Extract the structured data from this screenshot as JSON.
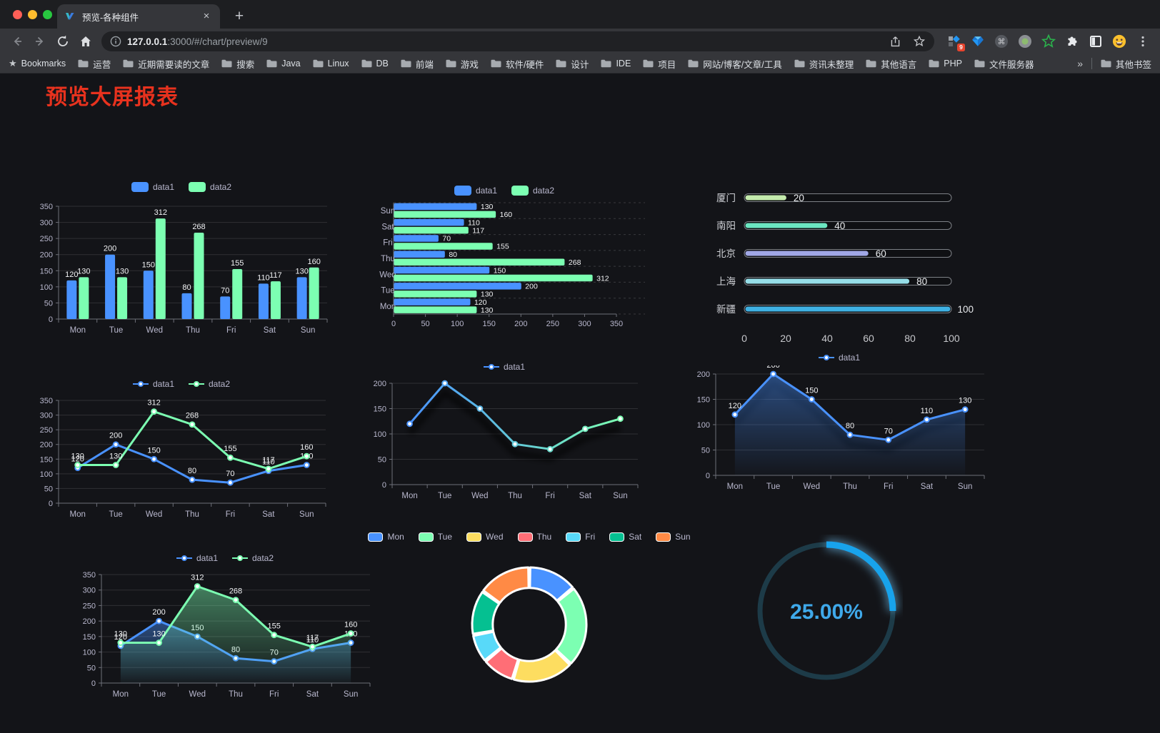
{
  "browser": {
    "tab_title": "预览-各种组件",
    "close_label": "×",
    "new_tab_label": "+",
    "url_host": "127.0.0.1",
    "url_rest": ":3000/#/chart/preview/9",
    "extension_badge": "9",
    "bookmarks_label": "Bookmarks",
    "bookmarks": [
      "运营",
      "近期需要读的文章",
      "搜索",
      "Java",
      "Linux",
      "DB",
      "前端",
      "游戏",
      "软件/硬件",
      "设计",
      "IDE",
      "项目",
      "网站/博客/文章/工具",
      "资讯未整理",
      "其他语言",
      "PHP",
      "文件服务器"
    ],
    "bookmarks_overflow": "»",
    "other_bookmarks": "其他书签"
  },
  "page": {
    "title": "预览大屏报表",
    "title_color": "#e8321e",
    "background": "#131418"
  },
  "chart_data": [
    {
      "id": "bar-vertical",
      "type": "bar",
      "categories": [
        "Mon",
        "Tue",
        "Wed",
        "Thu",
        "Fri",
        "Sat",
        "Sun"
      ],
      "series": [
        {
          "name": "data1",
          "color": "#4992ff",
          "values": [
            120,
            200,
            150,
            80,
            70,
            110,
            130
          ]
        },
        {
          "name": "data2",
          "color": "#7cffb2",
          "values": [
            130,
            130,
            312,
            268,
            155,
            117,
            160
          ]
        }
      ],
      "ylim": [
        0,
        350
      ],
      "yticks": [
        0,
        50,
        100,
        150,
        200,
        250,
        300,
        350
      ],
      "show_labels": true,
      "legend_position": "top",
      "grid": true
    },
    {
      "id": "bar-horizontal",
      "type": "bar-horizontal",
      "categories": [
        "Mon",
        "Tue",
        "Wed",
        "Thu",
        "Fri",
        "Sat",
        "Sun"
      ],
      "display_order": [
        "Sun",
        "Sat",
        "Fri",
        "Thu",
        "Wed",
        "Tue",
        "Mon"
      ],
      "series": [
        {
          "name": "data1",
          "color": "#4992ff",
          "values": [
            120,
            200,
            150,
            80,
            70,
            110,
            130
          ]
        },
        {
          "name": "data2",
          "color": "#7cffb2",
          "values": [
            130,
            130,
            312,
            268,
            155,
            117,
            160
          ]
        }
      ],
      "xlim": [
        0,
        350
      ],
      "xticks": [
        0,
        50,
        100,
        150,
        200,
        250,
        300,
        350
      ],
      "show_labels": true,
      "legend_position": "top",
      "grid": true
    },
    {
      "id": "progress",
      "type": "progress-bars",
      "categories": [
        "厦门",
        "南阳",
        "北京",
        "上海",
        "新疆"
      ],
      "values": [
        20,
        40,
        60,
        80,
        100
      ],
      "colors": [
        "#c4ebad",
        "#6be6c1",
        "#a0a7e6",
        "#96dee8",
        "#3fb1e3"
      ],
      "xlim": [
        0,
        100
      ],
      "xticks": [
        0,
        20,
        40,
        60,
        80,
        100
      ]
    },
    {
      "id": "line-basic",
      "type": "line",
      "categories": [
        "Mon",
        "Tue",
        "Wed",
        "Thu",
        "Fri",
        "Sat",
        "Sun"
      ],
      "series": [
        {
          "name": "data1",
          "color": "#4992ff",
          "values": [
            120,
            200,
            150,
            80,
            70,
            110,
            130
          ]
        },
        {
          "name": "data2",
          "color": "#7cffb2",
          "values": [
            130,
            130,
            312,
            268,
            155,
            117,
            160
          ]
        }
      ],
      "ylim": [
        0,
        350
      ],
      "yticks": [
        0,
        50,
        100,
        150,
        200,
        250,
        300,
        350
      ],
      "show_labels": true,
      "area": false,
      "legend_position": "top"
    },
    {
      "id": "line-gradient",
      "type": "line",
      "categories": [
        "Mon",
        "Tue",
        "Wed",
        "Thu",
        "Fri",
        "Sat",
        "Sun"
      ],
      "series": [
        {
          "name": "data1",
          "color": "#4992ff",
          "color_end": "#7cffb2",
          "values": [
            120,
            200,
            150,
            80,
            70,
            110,
            130
          ]
        }
      ],
      "ylim": [
        0,
        200
      ],
      "yticks": [
        0,
        50,
        100,
        150,
        200
      ],
      "show_labels": false,
      "area": false,
      "gradient_line": true,
      "shadow": true,
      "legend_position": "top"
    },
    {
      "id": "line-area-single",
      "type": "line",
      "categories": [
        "Mon",
        "Tue",
        "Wed",
        "Thu",
        "Fri",
        "Sat",
        "Sun"
      ],
      "series": [
        {
          "name": "data1",
          "color": "#4992ff",
          "values": [
            120,
            200,
            150,
            80,
            70,
            110,
            130
          ]
        }
      ],
      "ylim": [
        0,
        200
      ],
      "yticks": [
        0,
        50,
        100,
        150,
        200
      ],
      "show_labels": true,
      "area": true,
      "shadow": true,
      "legend_position": "top"
    },
    {
      "id": "line-area-double",
      "type": "line",
      "categories": [
        "Mon",
        "Tue",
        "Wed",
        "Thu",
        "Fri",
        "Sat",
        "Sun"
      ],
      "series": [
        {
          "name": "data1",
          "color": "#4992ff",
          "values": [
            120,
            200,
            150,
            80,
            70,
            110,
            130
          ]
        },
        {
          "name": "data2",
          "color": "#7cffb2",
          "values": [
            130,
            130,
            312,
            268,
            155,
            117,
            160
          ]
        }
      ],
      "ylim": [
        0,
        350
      ],
      "yticks": [
        0,
        50,
        100,
        150,
        200,
        250,
        300,
        350
      ],
      "show_labels": true,
      "area": true,
      "legend_position": "top"
    },
    {
      "id": "donut",
      "type": "pie",
      "categories": [
        "Mon",
        "Tue",
        "Wed",
        "Thu",
        "Fri",
        "Sat",
        "Sun"
      ],
      "values": [
        120,
        200,
        150,
        80,
        70,
        110,
        130
      ],
      "colors": [
        "#4992ff",
        "#7cffb2",
        "#fddd60",
        "#ff6e76",
        "#58d9f9",
        "#05c091",
        "#ff8a45"
      ],
      "inner_radius_ratio": 0.64,
      "legend_position": "top"
    },
    {
      "id": "gauge",
      "type": "gauge",
      "percent": 25,
      "label": "25.00%",
      "color": "#18a3ec",
      "track_color": "#1d3b48",
      "text_color": "#3fa9ea",
      "glow": true
    }
  ]
}
